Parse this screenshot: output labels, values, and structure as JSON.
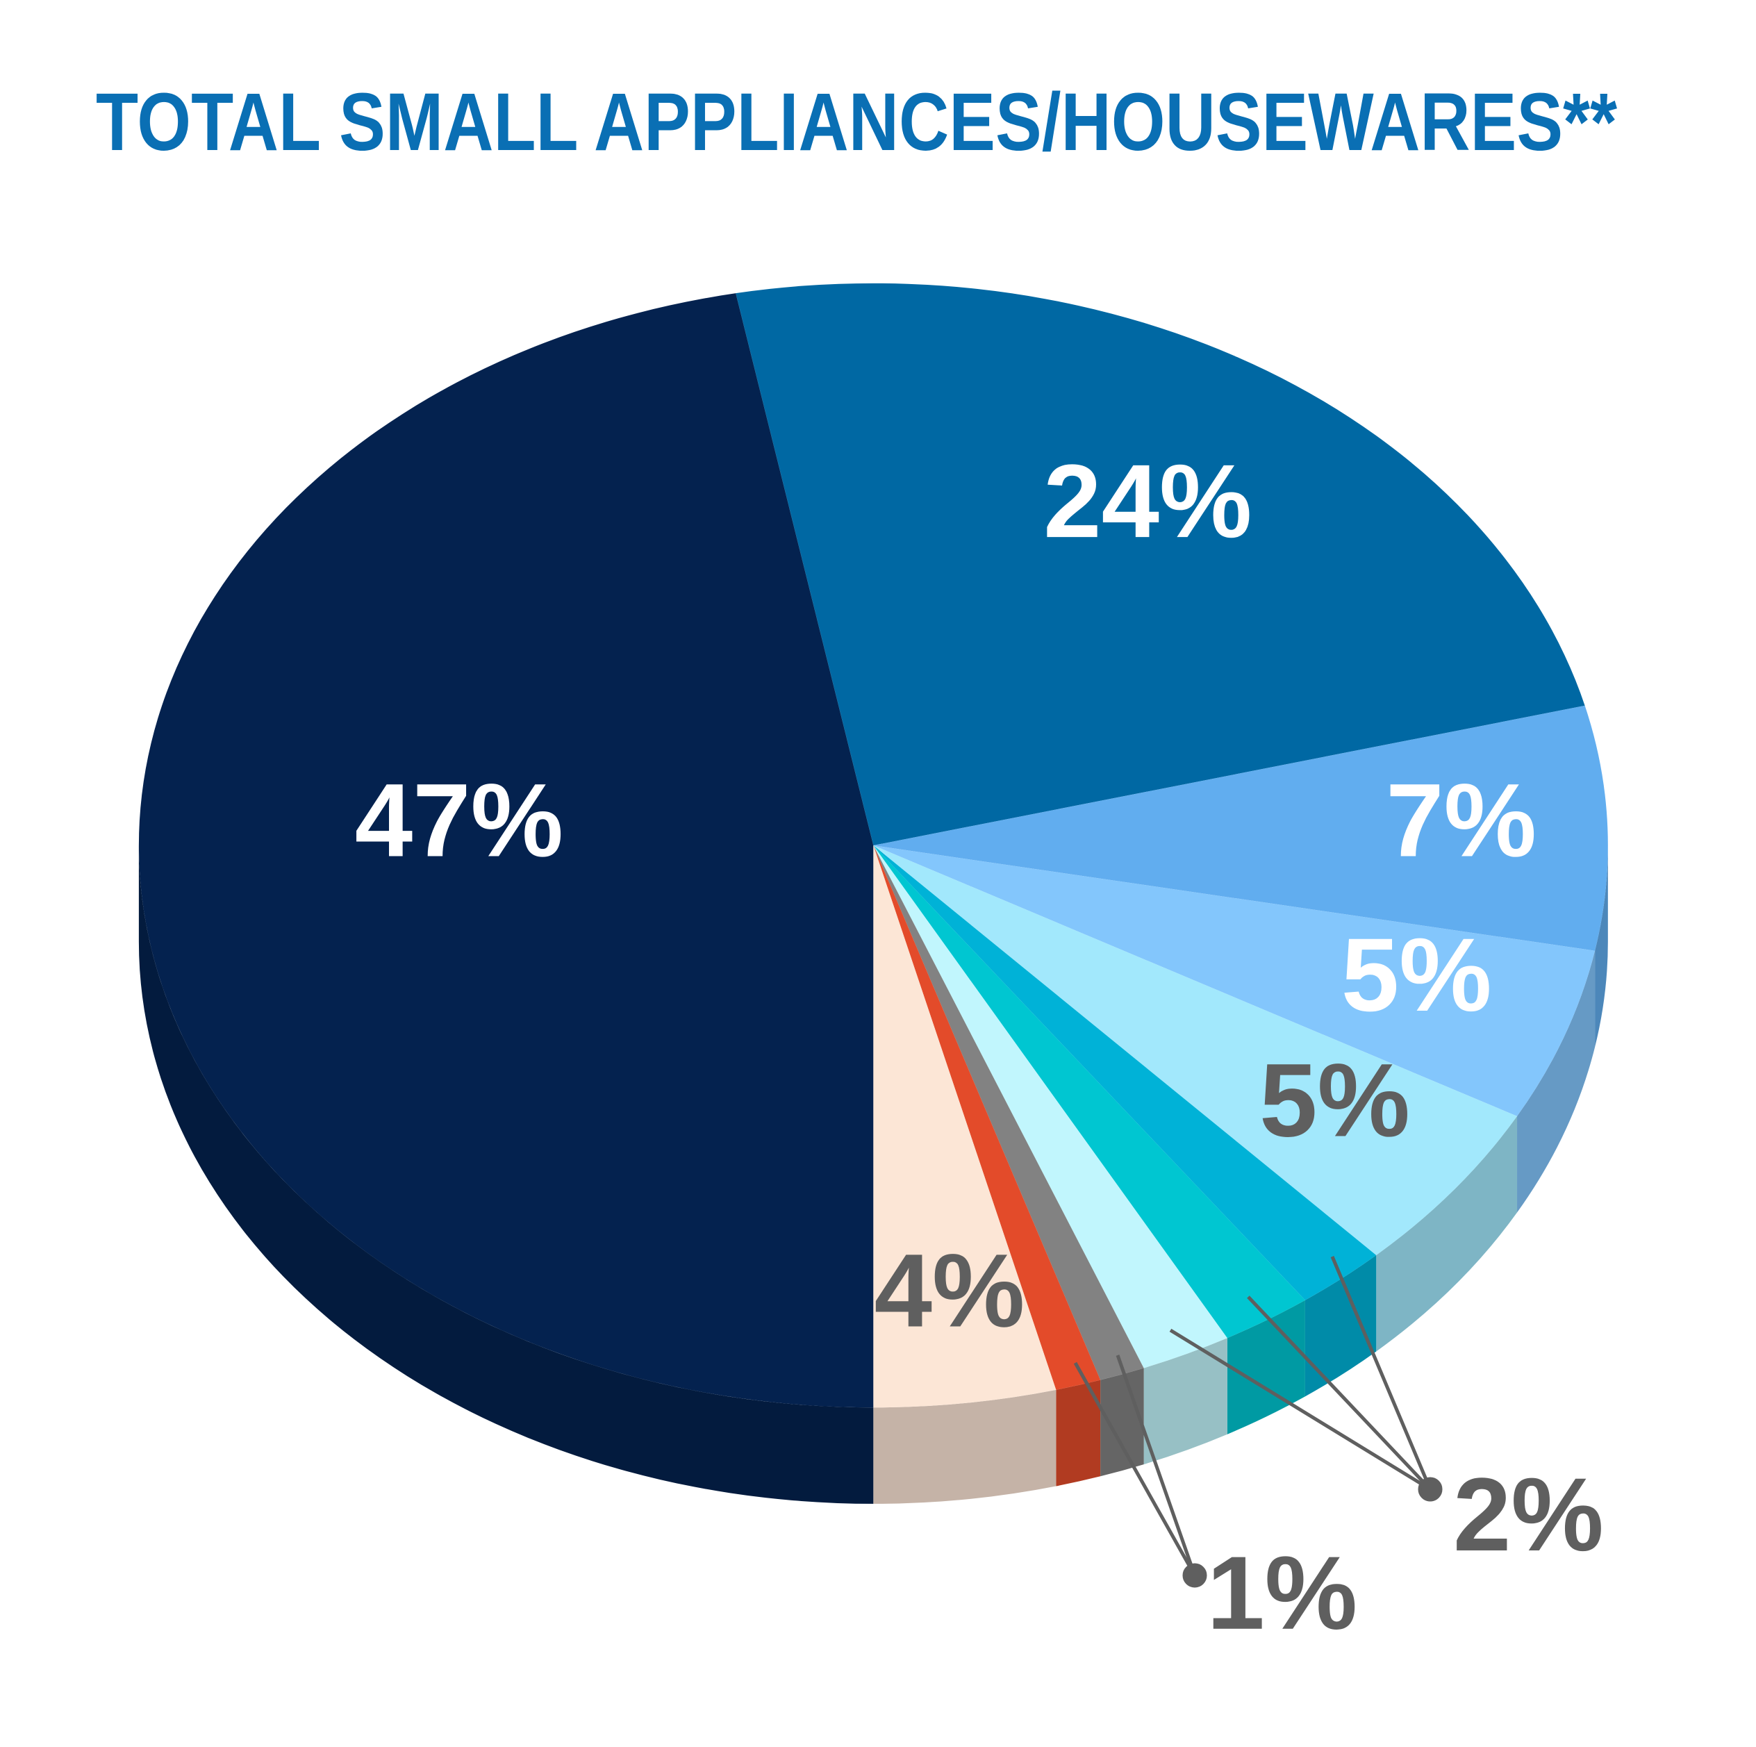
{
  "chart_data": {
    "type": "pie",
    "title": "TOTAL SMALL APPLIANCES/HOUSEWARES**",
    "values": [
      47,
      24,
      7,
      5,
      5,
      2,
      2,
      2,
      1,
      1,
      4
    ],
    "value_labels": [
      "47%",
      "24%",
      "7%",
      "5%",
      "5%",
      null,
      "2%",
      null,
      "1%",
      null,
      "4%"
    ],
    "colors": [
      "#04224f",
      "#0068a3",
      "#61adef",
      "#83c6fc",
      "#a2e8fc",
      "#00b2d7",
      "#00c6d1",
      "#c1f6fd",
      "#828282",
      "#e34b2a",
      "#fce6d6"
    ],
    "label_colors": [
      "#ffffff",
      "#ffffff",
      "#ffffff",
      "#ffffff",
      "#5f5f5f",
      "#5f5f5f",
      "#5f5f5f",
      "#5f5f5f",
      "#5f5f5f",
      "#5f5f5f",
      "#5f5f5f"
    ]
  }
}
